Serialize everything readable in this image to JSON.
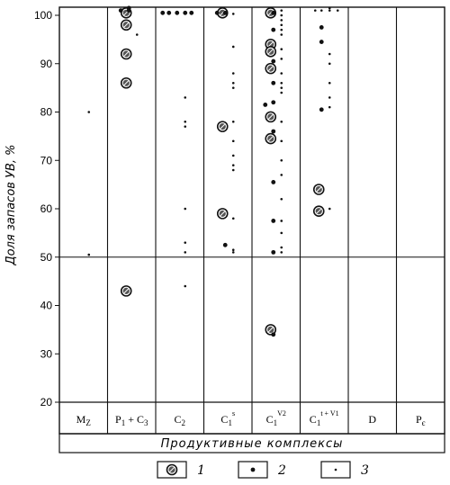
{
  "chart_data": {
    "type": "scatter",
    "xlabel": "Продуктивные комплексы",
    "ylabel": "Доля запасов УВ, %",
    "ylim": [
      20,
      102
    ],
    "yticks": [
      20,
      30,
      40,
      50,
      60,
      70,
      80,
      90,
      100
    ],
    "reference_line": 50,
    "categories": [
      {
        "base": "M",
        "sub": "Z",
        "sup": ""
      },
      {
        "base": "P",
        "sub": "1",
        "mid": " + C",
        "sub2": "3",
        "sup": ""
      },
      {
        "base": "C",
        "sub": "2",
        "sup": ""
      },
      {
        "base": "C",
        "sub": "1",
        "sup": "s"
      },
      {
        "base": "C",
        "sub": "1",
        "sup": "V2"
      },
      {
        "base": "C",
        "sub": "1",
        "sup": "t + V1"
      },
      {
        "base": "D",
        "sub": "",
        "sup": ""
      },
      {
        "base": "P",
        "sub": "є",
        "sup": ""
      }
    ],
    "legend": [
      {
        "marker": "large",
        "label": "1"
      },
      {
        "marker": "medium",
        "label": "2"
      },
      {
        "marker": "small",
        "label": "3"
      }
    ],
    "series": [
      {
        "marker": "large",
        "points": [
          [
            1,
            100.5
          ],
          [
            1,
            98
          ],
          [
            1,
            92
          ],
          [
            1,
            86
          ],
          [
            1,
            43
          ],
          [
            3,
            100.5
          ],
          [
            3,
            77
          ],
          [
            3,
            59
          ],
          [
            4,
            100.5
          ],
          [
            4,
            94
          ],
          [
            4,
            92.5
          ],
          [
            4,
            89
          ],
          [
            4,
            79
          ],
          [
            4,
            74.5
          ],
          [
            4,
            35
          ],
          [
            5,
            64
          ],
          [
            5,
            59.5
          ]
        ]
      },
      {
        "marker": "medium",
        "points": [
          [
            1,
            101
          ],
          [
            1,
            101
          ],
          [
            1,
            101.5
          ],
          [
            2,
            100.5
          ],
          [
            2,
            100.5
          ],
          [
            2,
            100.5
          ],
          [
            2,
            100.5
          ],
          [
            2,
            100.5
          ],
          [
            3,
            100.5
          ],
          [
            3,
            100.5
          ],
          [
            3,
            52.5
          ],
          [
            4,
            100.5
          ],
          [
            4,
            97
          ],
          [
            4,
            90.5
          ],
          [
            4,
            86
          ],
          [
            4,
            82
          ],
          [
            4,
            81.5
          ],
          [
            4,
            76
          ],
          [
            4,
            65.5
          ],
          [
            4,
            57.5
          ],
          [
            4,
            51
          ],
          [
            4,
            34
          ],
          [
            5,
            97.5
          ],
          [
            5,
            94.5
          ],
          [
            5,
            80.5
          ]
        ]
      },
      {
        "marker": "small",
        "points": [
          [
            0,
            80
          ],
          [
            0,
            50.5
          ],
          [
            1,
            96
          ],
          [
            2,
            83
          ],
          [
            2,
            78
          ],
          [
            2,
            77
          ],
          [
            2,
            60
          ],
          [
            2,
            53
          ],
          [
            2,
            51
          ],
          [
            2,
            44
          ],
          [
            3,
            100.3
          ],
          [
            3,
            93.5
          ],
          [
            3,
            88
          ],
          [
            3,
            86
          ],
          [
            3,
            85
          ],
          [
            3,
            78
          ],
          [
            3,
            74
          ],
          [
            3,
            71
          ],
          [
            3,
            69
          ],
          [
            3,
            68
          ],
          [
            3,
            58
          ],
          [
            3,
            51.5
          ],
          [
            3,
            51
          ],
          [
            4,
            101
          ],
          [
            4,
            100
          ],
          [
            4,
            99
          ],
          [
            4,
            98
          ],
          [
            4,
            97
          ],
          [
            4,
            96
          ],
          [
            4,
            93
          ],
          [
            4,
            91
          ],
          [
            4,
            88
          ],
          [
            4,
            86
          ],
          [
            4,
            85
          ],
          [
            4,
            84
          ],
          [
            4,
            78
          ],
          [
            4,
            74
          ],
          [
            4,
            70
          ],
          [
            4,
            67
          ],
          [
            4,
            62
          ],
          [
            4,
            57.5
          ],
          [
            4,
            55
          ],
          [
            4,
            52
          ],
          [
            4,
            51
          ],
          [
            5,
            101.5
          ],
          [
            5,
            101
          ],
          [
            5,
            101
          ],
          [
            5,
            101
          ],
          [
            5,
            101
          ],
          [
            5,
            92
          ],
          [
            5,
            90
          ],
          [
            5,
            86
          ],
          [
            5,
            83
          ],
          [
            5,
            81
          ],
          [
            5,
            60
          ]
        ]
      }
    ]
  }
}
